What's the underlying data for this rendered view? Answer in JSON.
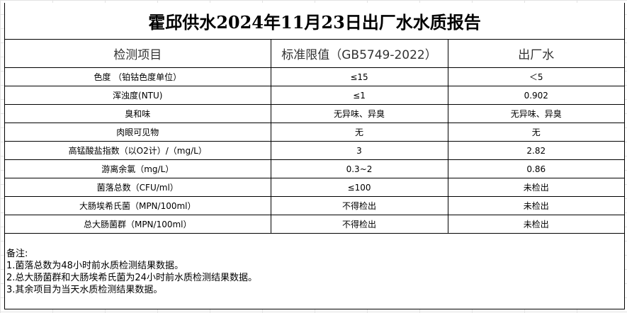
{
  "title": "霍邱供水2024年11月23日出厂水水质报告",
  "headers": [
    "检测项目",
    "标准限值（GB5749-2022）",
    "出厂水"
  ],
  "rows": [
    [
      "色度 （铂钴色度单位）",
      "≤15",
      "＜5"
    ],
    [
      "浑浊度(NTU)",
      "≤1",
      "0.902"
    ],
    [
      "臭和味",
      "无异味、异臭",
      "无异味、异臭"
    ],
    [
      "肉眼可见物",
      "无",
      "无"
    ],
    [
      "高锰酸盐指数（以O2计）/（mg/L）",
      "3",
      "2.82"
    ],
    [
      "游离余氯（mg/L）",
      "0.3~2",
      "0.86"
    ],
    [
      "菌落总数（CFU/ml）",
      "≤100",
      "未检出"
    ],
    [
      "大肠埃希氏菌（MPN/100ml）",
      "不得检出",
      "未检出"
    ],
    [
      "总大肠菌群（MPN/100ml）",
      "不得检出",
      "未检出"
    ]
  ],
  "notes": [
    "备注:",
    "1.菌落总数为48小时前水质检测结果数据。",
    "2.总大肠菌群和大肠埃希氏菌为24小时前水质检测结果数据。",
    "3.其余项目为当天水质检测结果数据。"
  ]
}
